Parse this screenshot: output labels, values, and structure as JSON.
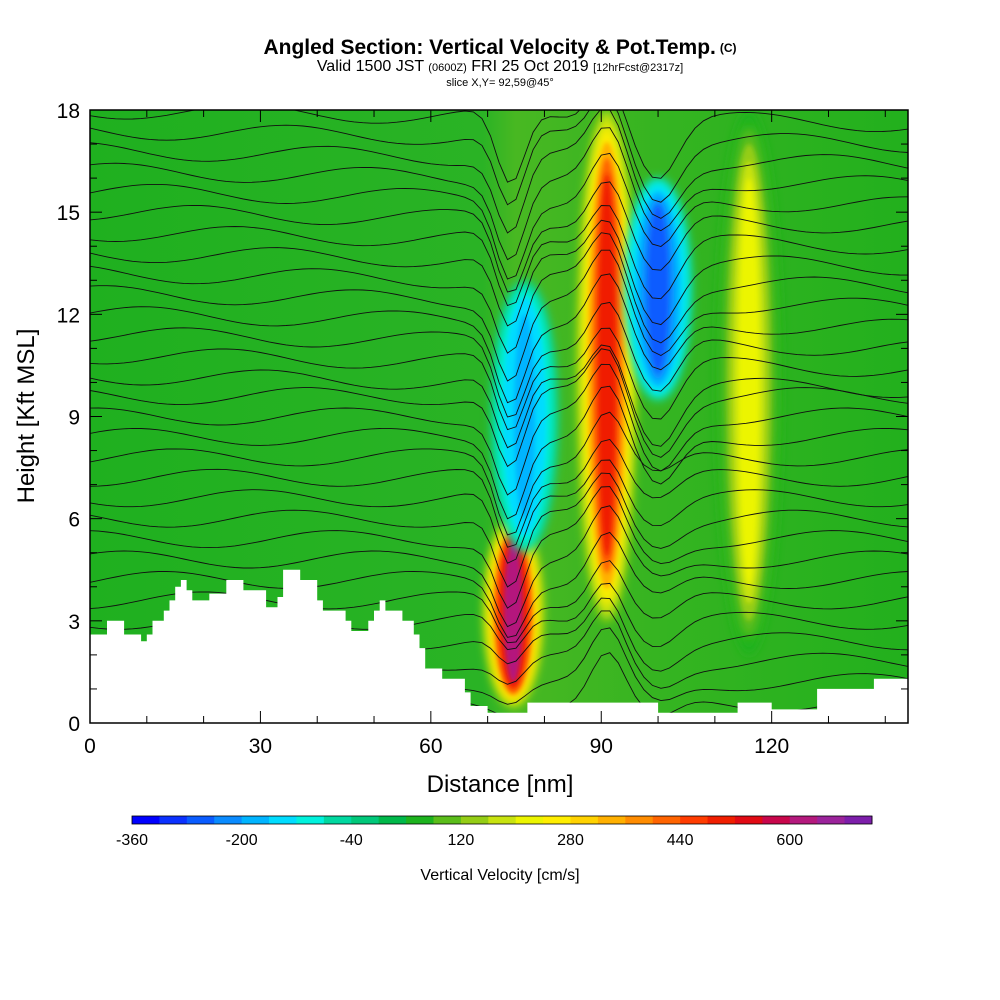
{
  "header": {
    "title": "Angled Section: Vertical Velocity & Pot.Temp.",
    "title_note": "(C)",
    "valid_prefix": "Valid 1500 JST",
    "valid_utc": "(0600Z)",
    "valid_date": "FRI 25 Oct 2019",
    "forecast_note": "[12hrFcst@2317z]",
    "slice": "slice X,Y= 92,59@45°"
  },
  "chart_data": {
    "type": "heatmap",
    "xlabel": "Distance [nm]",
    "ylabel": "Height [Kft MSL]",
    "xlim": [
      0,
      144
    ],
    "ylim": [
      0,
      18
    ],
    "x_ticks": [
      0,
      30,
      60,
      90,
      120
    ],
    "y_ticks": [
      0,
      3,
      6,
      9,
      12,
      15,
      18
    ],
    "field": "Vertical Velocity [cm/s]",
    "contour_field": "Potential temperature (C), black contours",
    "terrain": {
      "x": [
        0,
        3,
        3,
        6,
        6,
        9,
        9,
        10,
        10,
        11,
        11,
        13,
        13,
        14,
        14,
        15,
        15,
        16,
        16,
        17,
        17,
        18,
        18,
        21,
        21,
        24,
        24,
        27,
        27,
        31,
        31,
        33,
        33,
        34,
        34,
        37,
        37,
        40,
        40,
        41,
        41,
        45,
        45,
        46,
        46,
        49,
        49,
        50,
        50,
        51,
        51,
        52,
        52,
        55,
        55,
        57,
        57,
        58,
        58,
        59,
        59,
        62,
        62,
        66,
        66,
        67,
        67,
        70,
        70,
        73,
        73,
        77,
        77,
        100,
        100,
        114,
        114,
        120,
        120,
        128,
        128,
        138,
        138,
        144
      ],
      "y": [
        2.6,
        2.6,
        3.0,
        3.0,
        2.6,
        2.6,
        2.4,
        2.4,
        2.6,
        2.6,
        3.0,
        3.0,
        3.3,
        3.3,
        3.6,
        3.6,
        4.0,
        4.0,
        4.2,
        4.2,
        3.9,
        3.9,
        3.6,
        3.6,
        3.8,
        3.8,
        4.2,
        4.2,
        3.9,
        3.9,
        3.4,
        3.4,
        3.7,
        3.7,
        4.5,
        4.5,
        4.2,
        4.2,
        3.6,
        3.6,
        3.3,
        3.3,
        3.0,
        3.0,
        2.7,
        2.7,
        3.0,
        3.0,
        3.3,
        3.3,
        3.6,
        3.6,
        3.3,
        3.3,
        3.0,
        3.0,
        2.6,
        2.6,
        2.2,
        2.2,
        1.6,
        1.6,
        1.3,
        1.3,
        0.9,
        0.9,
        0.5,
        0.5,
        0.3,
        0.3,
        0.3,
        0.3,
        0.6,
        0.6,
        0.3,
        0.3,
        0.6,
        0.6,
        0.4,
        0.4,
        1.0,
        1.0,
        1.3,
        1.3
      ]
    },
    "vertical_velocity_features": [
      {
        "x": 74.5,
        "y_range": [
          0.5,
          6.0
        ],
        "peak_cm_s": 600,
        "kind": "updraft"
      },
      {
        "x": 91.0,
        "y_range": [
          3.0,
          18.0
        ],
        "peak_cm_s": 480,
        "kind": "updraft"
      },
      {
        "x": 100.0,
        "y_range": [
          9.5,
          16.0
        ],
        "peak_cm_s": -280,
        "kind": "downdraft"
      },
      {
        "x": 76.5,
        "y_range": [
          5.0,
          13.0
        ],
        "peak_cm_s": -180,
        "kind": "downdraft"
      },
      {
        "x": 116.0,
        "y_range": [
          2.0,
          18.0
        ],
        "peak_cm_s": 200,
        "kind": "updraft"
      }
    ],
    "colorbar": {
      "label": "Vertical Velocity [cm/s]",
      "tick_labels": [
        "-360",
        "-200",
        "-40",
        "120",
        "280",
        "440",
        "600"
      ],
      "levels": [
        -360,
        -320,
        -280,
        -240,
        -200,
        -160,
        -120,
        -80,
        -40,
        0,
        40,
        80,
        120,
        160,
        200,
        240,
        280,
        320,
        360,
        400,
        440,
        480,
        520,
        560,
        600,
        640,
        680
      ],
      "colors": [
        "#0000ff",
        "#0b31ff",
        "#0a5cff",
        "#0a8bff",
        "#00b4ff",
        "#00dcff",
        "#00f2dd",
        "#00d8a0",
        "#00c87a",
        "#00b84a",
        "#1db31e",
        "#5bbd1a",
        "#94cd15",
        "#c8e310",
        "#ecf500",
        "#ffee00",
        "#ffd200",
        "#ffb000",
        "#ff8c00",
        "#ff6400",
        "#ff3c00",
        "#f01e00",
        "#e10a14",
        "#c8064b",
        "#b4197d",
        "#9b239b",
        "#7d1eaa"
      ]
    }
  }
}
